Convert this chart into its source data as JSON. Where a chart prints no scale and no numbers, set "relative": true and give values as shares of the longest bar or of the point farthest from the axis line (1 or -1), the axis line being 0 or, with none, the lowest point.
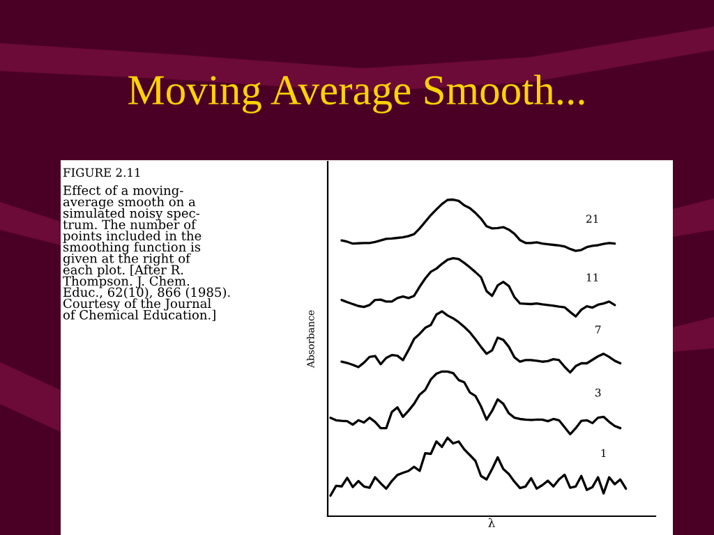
{
  "chart_data": {
    "type": "line",
    "title": "Moving Average Smooth...",
    "ylabel": "Absorbance",
    "xlabel": "λ",
    "relative": true,
    "line_style": "solid",
    "annotations": [
      "FIGURE 2.11",
      "Effect of a moving-\naverage smooth on a\nsimulated noisy spec-\ntrum. The number of\npoints included in the\nsmoothing function is\ngiven at the right of\neach plot. [After R.\nThompson. J. Chem.\nEduc., 62(10), 866 (1985).\nCourtesy of the Journal\nof Chemical Education.]"
    ],
    "categories": [
      null,
      null,
      null,
      null,
      null,
      null,
      null,
      null,
      null,
      null,
      null,
      null,
      null,
      null,
      null,
      null,
      null,
      null,
      null,
      null,
      null,
      null,
      null,
      null,
      null,
      null,
      null,
      null,
      null,
      null,
      null,
      null,
      null,
      null,
      null,
      null,
      null,
      null,
      null,
      null,
      null,
      null,
      null,
      null,
      null,
      null,
      null,
      null,
      null,
      null,
      null,
      null,
      null,
      null
    ],
    "series": [
      {
        "name": "21",
        "color": "#000000",
        "values": [
          null,
          null,
          0.871,
          0.867,
          0.861,
          0.862,
          0.863,
          0.863,
          0.866,
          0.871,
          0.876,
          0.877,
          0.879,
          0.881,
          0.885,
          0.891,
          0.909,
          0.93,
          0.951,
          0.969,
          0.986,
          0.999,
          1.0,
          0.996,
          0.982,
          0.973,
          0.958,
          0.94,
          0.916,
          0.909,
          0.91,
          0.913,
          0.905,
          0.892,
          0.872,
          0.863,
          0.863,
          0.865,
          0.861,
          0.859,
          0.857,
          0.855,
          0.852,
          0.844,
          0.838,
          0.841,
          0.85,
          0.854,
          0.856,
          0.86,
          0.863,
          0.861,
          null,
          null
        ]
      },
      {
        "name": "11",
        "color": "#000000",
        "values": [
          null,
          null,
          0.683,
          0.676,
          0.67,
          0.664,
          0.661,
          0.667,
          0.683,
          0.684,
          0.678,
          0.678,
          0.689,
          0.694,
          0.689,
          0.696,
          0.725,
          0.751,
          0.772,
          0.782,
          0.797,
          0.81,
          0.815,
          0.812,
          0.8,
          0.786,
          0.771,
          0.755,
          0.711,
          0.696,
          0.729,
          0.74,
          0.727,
          0.692,
          0.672,
          0.671,
          0.67,
          0.672,
          0.669,
          0.667,
          0.665,
          0.662,
          0.66,
          0.645,
          0.631,
          0.652,
          0.663,
          0.659,
          0.668,
          0.672,
          0.678,
          0.667,
          null,
          null
        ]
      },
      {
        "name": "7",
        "color": "#000000",
        "values": [
          null,
          null,
          0.488,
          0.484,
          0.478,
          0.471,
          0.485,
          0.503,
          0.506,
          0.48,
          0.5,
          0.509,
          0.507,
          0.493,
          0.525,
          0.56,
          0.576,
          0.595,
          0.604,
          0.637,
          0.647,
          0.634,
          0.625,
          0.613,
          0.598,
          0.581,
          0.559,
          0.535,
          0.513,
          0.524,
          0.564,
          0.557,
          0.535,
          0.502,
          0.488,
          0.493,
          0.493,
          0.491,
          0.488,
          0.49,
          0.496,
          0.493,
          0.472,
          0.454,
          0.474,
          0.483,
          0.483,
          0.494,
          0.505,
          0.513,
          0.503,
          0.491,
          0.483,
          null
        ]
      },
      {
        "name": "3",
        "color": "#000000",
        "values": [
          0.311,
          0.303,
          0.301,
          0.3,
          0.289,
          0.303,
          0.296,
          0.311,
          0.298,
          0.278,
          0.278,
          0.329,
          0.344,
          0.314,
          0.333,
          0.355,
          0.384,
          0.399,
          0.432,
          0.45,
          0.457,
          0.457,
          0.452,
          0.43,
          0.423,
          0.391,
          0.38,
          0.347,
          0.305,
          0.333,
          0.369,
          0.355,
          0.325,
          0.311,
          0.307,
          0.305,
          0.304,
          0.305,
          0.305,
          0.3,
          0.307,
          0.303,
          0.281,
          0.259,
          0.278,
          0.301,
          0.303,
          0.294,
          0.311,
          0.314,
          0.298,
          0.285,
          0.278,
          null
        ]
      },
      {
        "name": "1",
        "color": "#000000",
        "values": [
          0.065,
          0.096,
          0.094,
          0.121,
          0.092,
          0.111,
          0.094,
          0.09,
          0.123,
          0.104,
          0.087,
          0.111,
          0.13,
          0.137,
          0.143,
          0.156,
          0.143,
          0.199,
          0.197,
          0.236,
          0.219,
          0.248,
          0.23,
          0.236,
          0.211,
          0.193,
          0.175,
          0.127,
          0.116,
          0.149,
          0.186,
          0.149,
          0.133,
          0.109,
          0.089,
          0.094,
          0.12,
          0.087,
          0.098,
          0.112,
          0.094,
          0.116,
          0.131,
          0.09,
          0.094,
          0.127,
          0.083,
          0.092,
          0.123,
          0.072,
          0.123,
          0.101,
          0.116,
          0.087
        ]
      }
    ]
  }
}
